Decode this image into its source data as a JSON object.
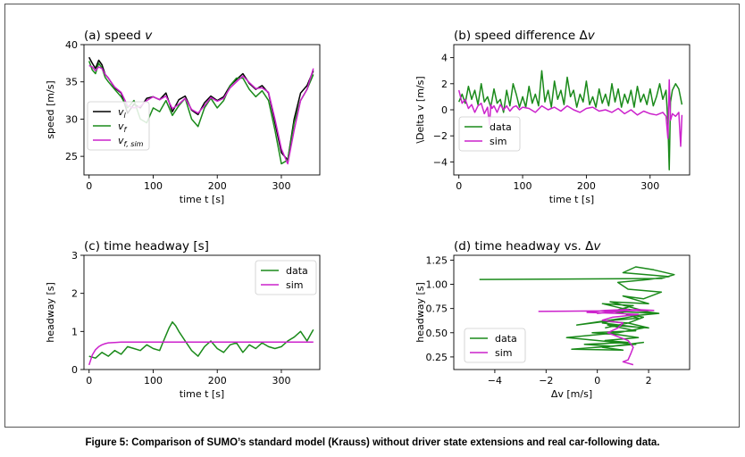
{
  "caption": "Figure 5: Comparison of SUMO’s standard model (Krauss) without driver state extensions and real car-following data.",
  "colors": {
    "leader": "#000000",
    "follower": "#1a8a1a",
    "sim": "#cc22cc"
  },
  "chart_data": [
    {
      "id": "a",
      "type": "line",
      "title": "(a) speed v",
      "xlabel": "time t [s]",
      "ylabel": "speed [m/s]",
      "xlim": [
        -8,
        360
      ],
      "ylim": [
        22.5,
        40
      ],
      "xticks": [
        0,
        100,
        200,
        300
      ],
      "yticks": [
        25,
        30,
        35,
        40
      ],
      "legend": "lower-left",
      "series": [
        {
          "name": "v_l",
          "label_main": "v",
          "label_sub": "l",
          "color": "#000000",
          "x": [
            0,
            5,
            10,
            15,
            20,
            25,
            30,
            40,
            50,
            60,
            70,
            80,
            90,
            100,
            110,
            120,
            130,
            140,
            150,
            160,
            170,
            180,
            190,
            200,
            210,
            220,
            230,
            240,
            250,
            260,
            270,
            280,
            290,
            300,
            310,
            320,
            330,
            340,
            350
          ],
          "y": [
            38.3,
            37.5,
            36.8,
            37.9,
            37.3,
            36.0,
            35.5,
            34.2,
            33.5,
            30.8,
            32.0,
            31.5,
            32.8,
            33.0,
            32.6,
            33.5,
            31.0,
            32.6,
            33.1,
            31.2,
            30.6,
            32.2,
            33.1,
            32.5,
            33.0,
            34.5,
            35.3,
            36.1,
            34.8,
            34.0,
            34.5,
            33.5,
            29.5,
            25.5,
            24.5,
            30.0,
            33.5,
            34.5,
            36.5
          ]
        },
        {
          "name": "v_f",
          "label_main": "v",
          "label_sub": "f",
          "color": "#1a8a1a",
          "x": [
            0,
            5,
            10,
            15,
            20,
            25,
            30,
            40,
            50,
            60,
            70,
            80,
            90,
            100,
            110,
            120,
            130,
            140,
            150,
            160,
            170,
            180,
            190,
            200,
            210,
            220,
            230,
            240,
            250,
            260,
            270,
            280,
            290,
            300,
            310,
            320,
            330,
            340,
            350
          ],
          "y": [
            37.8,
            36.6,
            36.1,
            37.5,
            36.9,
            35.6,
            35.0,
            34.0,
            33.0,
            31.5,
            32.5,
            30.0,
            29.5,
            31.5,
            31.0,
            32.5,
            30.5,
            31.8,
            32.8,
            30.0,
            29.0,
            31.5,
            32.8,
            31.5,
            32.5,
            34.5,
            35.5,
            35.5,
            34.0,
            33.0,
            33.8,
            32.5,
            28.5,
            24.0,
            24.5,
            29.5,
            32.5,
            34.0,
            36.0
          ]
        },
        {
          "name": "v_f,sim",
          "label_main": "v",
          "label_sub": "f, sim",
          "color": "#cc22cc",
          "x": [
            0,
            5,
            10,
            15,
            20,
            25,
            30,
            40,
            50,
            60,
            70,
            80,
            90,
            100,
            110,
            120,
            130,
            140,
            150,
            160,
            170,
            180,
            190,
            200,
            210,
            220,
            230,
            240,
            250,
            260,
            270,
            280,
            290,
            300,
            310,
            320,
            330,
            340,
            350
          ],
          "y": [
            37.2,
            37.0,
            36.5,
            37.0,
            36.8,
            36.0,
            35.5,
            34.3,
            33.6,
            31.8,
            31.5,
            31.7,
            32.5,
            33.0,
            32.6,
            33.1,
            31.4,
            32.0,
            32.8,
            31.3,
            30.8,
            31.8,
            32.9,
            32.4,
            32.8,
            34.2,
            35.0,
            35.8,
            34.9,
            34.1,
            34.2,
            33.6,
            30.0,
            26.0,
            24.0,
            28.5,
            32.5,
            34.0,
            36.8
          ]
        }
      ]
    },
    {
      "id": "b",
      "type": "line",
      "title": "(b) speed difference Δv",
      "xlabel": "time t [s]",
      "ylabel": "\\Delta v [m/s]",
      "xlim": [
        -8,
        362
      ],
      "ylim": [
        -5,
        5
      ],
      "xticks": [
        0,
        100,
        200,
        300
      ],
      "yticks": [
        -4,
        -2,
        0,
        2,
        4
      ],
      "legend": "lower-left",
      "series": [
        {
          "name": "data",
          "color": "#1a8a1a",
          "x": [
            0,
            5,
            10,
            15,
            20,
            25,
            30,
            35,
            40,
            45,
            50,
            55,
            60,
            65,
            70,
            75,
            80,
            85,
            90,
            95,
            100,
            105,
            110,
            115,
            120,
            125,
            130,
            135,
            140,
            145,
            150,
            155,
            160,
            165,
            170,
            175,
            180,
            185,
            190,
            195,
            200,
            205,
            210,
            215,
            220,
            225,
            230,
            235,
            240,
            245,
            250,
            255,
            260,
            265,
            270,
            275,
            280,
            285,
            290,
            295,
            300,
            305,
            310,
            315,
            320,
            325,
            328,
            330,
            332,
            335,
            340,
            345,
            350
          ],
          "y": [
            0.6,
            1.2,
            0.5,
            1.8,
            0.8,
            1.5,
            0.4,
            2.0,
            0.6,
            1.0,
            0.2,
            1.6,
            0.5,
            0.8,
            -0.2,
            1.5,
            0.3,
            2.0,
            1.2,
            0.2,
            1.0,
            0.2,
            1.8,
            0.5,
            1.2,
            0.3,
            3.0,
            0.6,
            1.5,
            0.2,
            2.2,
            0.8,
            1.5,
            0.4,
            2.5,
            1.0,
            1.5,
            0.2,
            1.2,
            0.6,
            2.2,
            0.4,
            1.0,
            0.2,
            1.6,
            0.5,
            1.2,
            0.3,
            2.0,
            0.6,
            1.6,
            0.2,
            1.2,
            0.5,
            1.5,
            0.2,
            1.8,
            0.6,
            1.2,
            0.4,
            1.6,
            0.3,
            1.0,
            2.0,
            0.8,
            1.5,
            -1.0,
            -4.6,
            0.6,
            1.5,
            2.0,
            1.6,
            0.4
          ]
        },
        {
          "name": "sim",
          "color": "#cc22cc",
          "x": [
            0,
            5,
            10,
            15,
            20,
            25,
            30,
            35,
            40,
            45,
            48,
            50,
            52,
            55,
            60,
            65,
            70,
            75,
            80,
            85,
            90,
            95,
            100,
            110,
            120,
            130,
            140,
            150,
            160,
            170,
            180,
            190,
            200,
            210,
            220,
            230,
            240,
            250,
            260,
            270,
            280,
            290,
            300,
            310,
            320,
            325,
            328,
            330,
            332,
            335,
            340,
            345,
            348,
            350
          ],
          "y": [
            1.5,
            0.5,
            0.8,
            0.1,
            0.4,
            -0.2,
            0.3,
            0.5,
            -0.3,
            0.2,
            -1.2,
            0.4,
            0.1,
            0.3,
            -0.2,
            0.4,
            0.0,
            0.3,
            -0.1,
            0.2,
            0.3,
            0.0,
            0.2,
            0.1,
            -0.2,
            0.3,
            0.0,
            0.2,
            -0.1,
            0.3,
            0.0,
            -0.2,
            0.1,
            0.2,
            -0.1,
            0.0,
            -0.2,
            0.1,
            -0.3,
            0.0,
            -0.4,
            -0.1,
            -0.3,
            -0.4,
            -0.2,
            -0.5,
            -2.2,
            2.3,
            -0.8,
            -0.3,
            -0.5,
            -0.2,
            -2.8,
            -0.4
          ]
        }
      ]
    },
    {
      "id": "c",
      "type": "line",
      "title": "(c) time headway [s]",
      "xlabel": "time t [s]",
      "ylabel": "headway [s]",
      "xlim": [
        -8,
        360
      ],
      "ylim": [
        0,
        3
      ],
      "xticks": [
        0,
        100,
        200,
        300
      ],
      "yticks": [
        0,
        1,
        2,
        3
      ],
      "legend": "upper-right",
      "series": [
        {
          "name": "data",
          "color": "#1a8a1a",
          "x": [
            0,
            10,
            20,
            30,
            40,
            50,
            60,
            70,
            80,
            90,
            100,
            110,
            115,
            120,
            125,
            130,
            135,
            140,
            150,
            160,
            170,
            180,
            190,
            200,
            210,
            220,
            230,
            240,
            250,
            260,
            270,
            280,
            290,
            300,
            310,
            320,
            330,
            340,
            345,
            350
          ],
          "y": [
            0.35,
            0.3,
            0.45,
            0.35,
            0.5,
            0.4,
            0.6,
            0.55,
            0.5,
            0.65,
            0.55,
            0.5,
            0.7,
            0.9,
            1.1,
            1.25,
            1.15,
            1.0,
            0.75,
            0.5,
            0.35,
            0.6,
            0.75,
            0.55,
            0.45,
            0.65,
            0.7,
            0.45,
            0.65,
            0.55,
            0.7,
            0.6,
            0.55,
            0.6,
            0.75,
            0.85,
            1.0,
            0.75,
            0.9,
            1.05
          ]
        },
        {
          "name": "sim",
          "color": "#cc22cc",
          "x": [
            0,
            5,
            10,
            15,
            20,
            25,
            30,
            40,
            50,
            60,
            80,
            100,
            150,
            200,
            250,
            300,
            350
          ],
          "y": [
            0.12,
            0.38,
            0.52,
            0.6,
            0.65,
            0.68,
            0.7,
            0.71,
            0.72,
            0.72,
            0.72,
            0.72,
            0.72,
            0.72,
            0.72,
            0.72,
            0.72
          ]
        }
      ]
    },
    {
      "id": "d",
      "type": "line",
      "title": "(d) time headway vs. Δv",
      "xlabel": "Δv [m/s]",
      "ylabel": "headway [s]",
      "xlim": [
        -5.6,
        3.6
      ],
      "ylim": [
        0.12,
        1.3
      ],
      "xticks": [
        -4,
        -2,
        0,
        2
      ],
      "yticks": [
        0.25,
        0.5,
        0.75,
        1.0,
        1.25
      ],
      "yticklabels": [
        "0.25",
        "0.50",
        "0.75",
        "1.00",
        "1.25"
      ],
      "legend": "lower-left",
      "series": [
        {
          "name": "data",
          "color": "#1a8a1a",
          "x": [
            -4.6,
            2.5,
            3.0,
            2.2,
            1.5,
            1.0,
            2.8,
            2.0,
            0.8,
            1.2,
            2.5,
            1.8,
            1.0,
            2.0,
            0.5,
            1.5,
            2.2,
            0.8,
            1.6,
            0.2,
            1.2,
            2.0,
            0.4,
            1.5,
            -0.2,
            0.8,
            1.6,
            0.3,
            1.2,
            -0.5,
            0.6,
            1.8,
            0.2,
            1.0,
            -1.0,
            0.5,
            1.5,
            0.0,
            -1.2,
            0.8,
            1.8,
            0.2,
            1.0,
            -0.8,
            0.4,
            1.6,
            2.4,
            1.0,
            0.2,
            1.4,
            0.6,
            1.8,
            1.2,
            0.3
          ],
          "y": [
            1.05,
            1.06,
            1.1,
            1.15,
            1.18,
            1.12,
            1.08,
            1.05,
            1.02,
            0.95,
            0.92,
            0.85,
            0.88,
            0.8,
            0.82,
            0.75,
            0.7,
            0.72,
            0.65,
            0.62,
            0.6,
            0.55,
            0.58,
            0.52,
            0.5,
            0.48,
            0.45,
            0.42,
            0.4,
            0.38,
            0.36,
            0.4,
            0.35,
            0.32,
            0.33,
            0.36,
            0.38,
            0.42,
            0.45,
            0.5,
            0.55,
            0.6,
            0.65,
            0.58,
            0.62,
            0.68,
            0.7,
            0.75,
            0.8,
            0.78,
            0.72,
            0.66,
            0.6,
            0.55
          ]
        },
        {
          "name": "sim",
          "color": "#cc22cc",
          "x": [
            -2.3,
            2.2,
            1.5,
            0.8,
            0.0,
            0.5,
            1.2,
            0.3,
            -0.4,
            0.8,
            1.6,
            0.6,
            0.2,
            1.0,
            0.8,
            0.4,
            1.2,
            1.4,
            1.3,
            1.2,
            1.0,
            1.4
          ],
          "y": [
            0.72,
            0.73,
            0.74,
            0.72,
            0.7,
            0.72,
            0.74,
            0.73,
            0.71,
            0.7,
            0.69,
            0.66,
            0.63,
            0.6,
            0.55,
            0.5,
            0.42,
            0.35,
            0.28,
            0.22,
            0.2,
            0.17
          ]
        }
      ]
    }
  ]
}
